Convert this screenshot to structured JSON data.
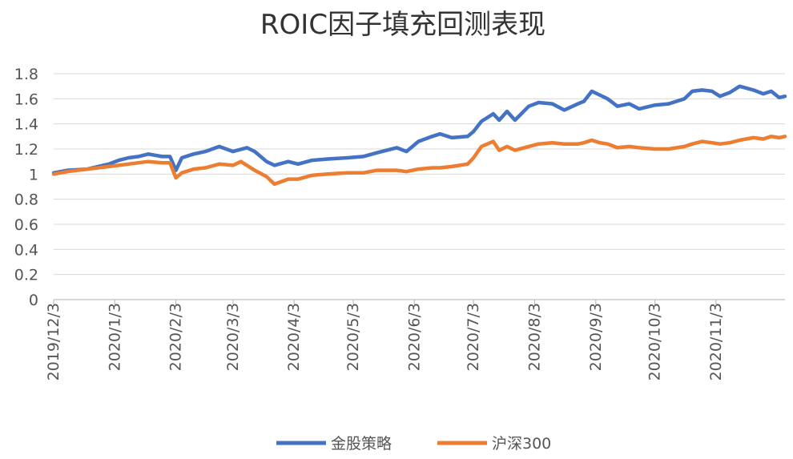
{
  "chart_data": {
    "type": "line",
    "title": "ROIC因子填充回测表现",
    "xlabel": "",
    "ylabel": "",
    "ylim": [
      0,
      1.8
    ],
    "yticks": [
      "0",
      "0.2",
      "0.4",
      "0.6",
      "0.8",
      "1",
      "1.2",
      "1.4",
      "1.6",
      "1.8"
    ],
    "grid": true,
    "legend_position": "bottom",
    "x_tick_labels": [
      "2019/12/3",
      "2020/1/3",
      "2020/2/3",
      "2020/3/3",
      "2020/4/3",
      "2020/5/3",
      "2020/6/3",
      "2020/7/3",
      "2020/8/3",
      "2020/9/3",
      "2020/10/3",
      "2020/11/3"
    ],
    "x_tick_dates": [
      "2019-12-03",
      "2020-01-03",
      "2020-02-03",
      "2020-03-03",
      "2020-04-03",
      "2020-05-03",
      "2020-06-03",
      "2020-07-03",
      "2020-08-03",
      "2020-09-03",
      "2020-10-03",
      "2020-11-03"
    ],
    "x_range": [
      "2019-12-03",
      "2020-12-08"
    ],
    "series": [
      {
        "name": "金股策略",
        "color": "#4472C4",
        "points": [
          [
            "2019-12-03",
            1.01
          ],
          [
            "2019-12-10",
            1.03
          ],
          [
            "2019-12-20",
            1.04
          ],
          [
            "2019-12-31",
            1.08
          ],
          [
            "2020-01-05",
            1.11
          ],
          [
            "2020-01-10",
            1.13
          ],
          [
            "2020-01-15",
            1.14
          ],
          [
            "2020-01-20",
            1.16
          ],
          [
            "2020-01-27",
            1.14
          ],
          [
            "2020-01-31",
            1.14
          ],
          [
            "2020-02-03",
            1.03
          ],
          [
            "2020-02-06",
            1.13
          ],
          [
            "2020-02-12",
            1.16
          ],
          [
            "2020-02-18",
            1.18
          ],
          [
            "2020-02-25",
            1.22
          ],
          [
            "2020-03-03",
            1.18
          ],
          [
            "2020-03-10",
            1.21
          ],
          [
            "2020-03-14",
            1.18
          ],
          [
            "2020-03-20",
            1.1
          ],
          [
            "2020-03-24",
            1.07
          ],
          [
            "2020-03-31",
            1.1
          ],
          [
            "2020-04-05",
            1.08
          ],
          [
            "2020-04-12",
            1.11
          ],
          [
            "2020-04-20",
            1.12
          ],
          [
            "2020-04-30",
            1.13
          ],
          [
            "2020-05-08",
            1.14
          ],
          [
            "2020-05-15",
            1.17
          ],
          [
            "2020-05-25",
            1.21
          ],
          [
            "2020-05-30",
            1.18
          ],
          [
            "2020-06-05",
            1.26
          ],
          [
            "2020-06-12",
            1.3
          ],
          [
            "2020-06-16",
            1.32
          ],
          [
            "2020-06-22",
            1.29
          ],
          [
            "2020-06-30",
            1.3
          ],
          [
            "2020-07-03",
            1.34
          ],
          [
            "2020-07-07",
            1.42
          ],
          [
            "2020-07-13",
            1.48
          ],
          [
            "2020-07-16",
            1.43
          ],
          [
            "2020-07-20",
            1.5
          ],
          [
            "2020-07-24",
            1.43
          ],
          [
            "2020-07-31",
            1.54
          ],
          [
            "2020-08-05",
            1.57
          ],
          [
            "2020-08-12",
            1.56
          ],
          [
            "2020-08-18",
            1.51
          ],
          [
            "2020-08-25",
            1.56
          ],
          [
            "2020-08-28",
            1.58
          ],
          [
            "2020-09-01",
            1.66
          ],
          [
            "2020-09-05",
            1.63
          ],
          [
            "2020-09-09",
            1.6
          ],
          [
            "2020-09-14",
            1.54
          ],
          [
            "2020-09-20",
            1.56
          ],
          [
            "2020-09-25",
            1.52
          ],
          [
            "2020-10-03",
            1.55
          ],
          [
            "2020-10-10",
            1.56
          ],
          [
            "2020-10-18",
            1.6
          ],
          [
            "2020-10-22",
            1.66
          ],
          [
            "2020-10-27",
            1.67
          ],
          [
            "2020-11-01",
            1.66
          ],
          [
            "2020-11-05",
            1.62
          ],
          [
            "2020-11-10",
            1.65
          ],
          [
            "2020-11-15",
            1.7
          ],
          [
            "2020-11-22",
            1.67
          ],
          [
            "2020-11-27",
            1.64
          ],
          [
            "2020-12-01",
            1.66
          ],
          [
            "2020-12-05",
            1.61
          ],
          [
            "2020-12-08",
            1.62
          ]
        ]
      },
      {
        "name": "沪深300",
        "color": "#ED7D31",
        "points": [
          [
            "2019-12-03",
            1.0
          ],
          [
            "2019-12-10",
            1.02
          ],
          [
            "2019-12-20",
            1.04
          ],
          [
            "2019-12-31",
            1.06
          ],
          [
            "2020-01-05",
            1.07
          ],
          [
            "2020-01-10",
            1.08
          ],
          [
            "2020-01-15",
            1.09
          ],
          [
            "2020-01-20",
            1.1
          ],
          [
            "2020-01-27",
            1.09
          ],
          [
            "2020-01-31",
            1.09
          ],
          [
            "2020-02-03",
            0.97
          ],
          [
            "2020-02-06",
            1.01
          ],
          [
            "2020-02-12",
            1.04
          ],
          [
            "2020-02-18",
            1.05
          ],
          [
            "2020-02-25",
            1.08
          ],
          [
            "2020-03-03",
            1.07
          ],
          [
            "2020-03-07",
            1.1
          ],
          [
            "2020-03-14",
            1.03
          ],
          [
            "2020-03-20",
            0.98
          ],
          [
            "2020-03-24",
            0.92
          ],
          [
            "2020-03-31",
            0.96
          ],
          [
            "2020-04-05",
            0.96
          ],
          [
            "2020-04-12",
            0.99
          ],
          [
            "2020-04-20",
            1.0
          ],
          [
            "2020-04-30",
            1.01
          ],
          [
            "2020-05-08",
            1.01
          ],
          [
            "2020-05-15",
            1.03
          ],
          [
            "2020-05-25",
            1.03
          ],
          [
            "2020-05-30",
            1.02
          ],
          [
            "2020-06-05",
            1.04
          ],
          [
            "2020-06-12",
            1.05
          ],
          [
            "2020-06-16",
            1.05
          ],
          [
            "2020-06-22",
            1.06
          ],
          [
            "2020-06-30",
            1.08
          ],
          [
            "2020-07-03",
            1.13
          ],
          [
            "2020-07-07",
            1.22
          ],
          [
            "2020-07-13",
            1.26
          ],
          [
            "2020-07-16",
            1.19
          ],
          [
            "2020-07-20",
            1.22
          ],
          [
            "2020-07-24",
            1.19
          ],
          [
            "2020-07-31",
            1.22
          ],
          [
            "2020-08-05",
            1.24
          ],
          [
            "2020-08-12",
            1.25
          ],
          [
            "2020-08-18",
            1.24
          ],
          [
            "2020-08-25",
            1.24
          ],
          [
            "2020-08-28",
            1.25
          ],
          [
            "2020-09-01",
            1.27
          ],
          [
            "2020-09-05",
            1.25
          ],
          [
            "2020-09-09",
            1.24
          ],
          [
            "2020-09-14",
            1.21
          ],
          [
            "2020-09-20",
            1.22
          ],
          [
            "2020-09-25",
            1.21
          ],
          [
            "2020-10-03",
            1.2
          ],
          [
            "2020-10-10",
            1.2
          ],
          [
            "2020-10-18",
            1.22
          ],
          [
            "2020-10-22",
            1.24
          ],
          [
            "2020-10-27",
            1.26
          ],
          [
            "2020-11-01",
            1.25
          ],
          [
            "2020-11-05",
            1.24
          ],
          [
            "2020-11-10",
            1.25
          ],
          [
            "2020-11-15",
            1.27
          ],
          [
            "2020-11-22",
            1.29
          ],
          [
            "2020-11-27",
            1.28
          ],
          [
            "2020-12-01",
            1.3
          ],
          [
            "2020-12-05",
            1.29
          ],
          [
            "2020-12-08",
            1.3
          ]
        ]
      }
    ]
  }
}
